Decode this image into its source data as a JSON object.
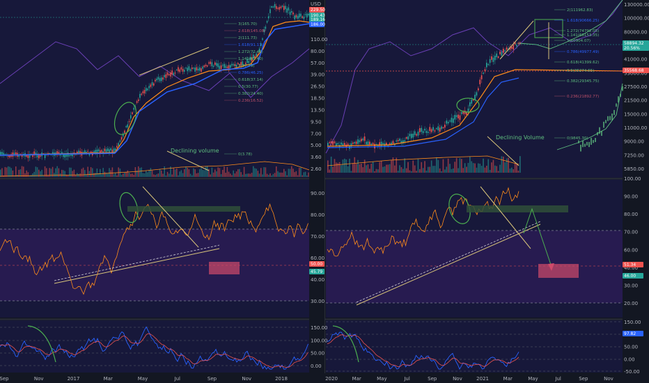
{
  "theme": {
    "bg": "#131722",
    "panel_bg": "#1b1b3c",
    "rsi_band": "#2b1a4e",
    "grid": "#2a2e39",
    "candle_up": "#26a69a",
    "candle_down": "#ef5350",
    "orange": "#ff8c1a",
    "blue": "#2962ff",
    "purple": "#6a3fb5",
    "annotation_green": "#2f4f3a",
    "annotation_red": "#d04a6a",
    "trend_yellow": "#d8c47a",
    "fib_green": "#5fbf7f",
    "fib_red": "#c0506a"
  },
  "left_chart": {
    "annotation": "Declining volume",
    "price_axis": {
      "unit": "USD",
      "ticks": [
        "110.00",
        "80.00",
        "57.00",
        "39.00",
        "26.50",
        "18.50",
        "13.50",
        "9.50",
        "7.00",
        "5.00",
        "3.60",
        "2.60"
      ],
      "badges": [
        {
          "text": "229.50",
          "color": "#ef5350"
        },
        {
          "text": "190.43",
          "color": "#26a69a"
        },
        {
          "text": "189.16",
          "color": "#26a69a"
        },
        {
          "text": "186.00",
          "color": "#2962ff"
        }
      ]
    },
    "fib_levels": [
      {
        "label": "3(165.70)",
        "color": "#5fbf7f"
      },
      {
        "label": "2.618(145.08)",
        "color": "#c0506a"
      },
      {
        "label": "2(111.73)",
        "color": "#5fbf7f"
      },
      {
        "label": "1.618(91.11)",
        "color": "#2962ff"
      },
      {
        "label": "1.272(72.46)",
        "color": "#5fbf7f"
      },
      {
        "label": "1.141(65.40)",
        "color": "#5fbf7f"
      },
      {
        "label": "1(57.79)",
        "color": "#5fbf7f"
      },
      {
        "label": "0.786(46.25)",
        "color": "#2962ff"
      },
      {
        "label": "0.618(37.14)",
        "color": "#5fbf7f"
      },
      {
        "label": "0.5(30.77)",
        "color": "#5fbf7f"
      },
      {
        "label": "0.382(24.40)",
        "color": "#5fbf7f"
      },
      {
        "label": "0.236(16.52)",
        "color": "#c0506a"
      },
      {
        "label": "0(3.78)",
        "color": "#5fbf7f"
      }
    ],
    "rsi_axis": [
      "90.00",
      "80.00",
      "70.00",
      "60.00",
      "40.00",
      "30.00"
    ],
    "rsi_badges": [
      {
        "text": "50.00",
        "color": "#ef5350"
      },
      {
        "text": "45.79",
        "color": "#26a69a"
      }
    ],
    "osc_axis": [
      "150.00",
      "100.00",
      "50.00",
      "0.00"
    ],
    "time_axis": [
      "Sep",
      "Nov",
      "2017",
      "Mar",
      "May",
      "Jul",
      "Sep",
      "Nov",
      "2018"
    ]
  },
  "right_chart": {
    "annotation": "Declining Volume",
    "price_axis": {
      "ticks": [
        "130000.00",
        "100000.00",
        "80000.00",
        "61000.00",
        "41000.00",
        "33000.00",
        "27500.00",
        "21500.00",
        "15000.00",
        "11000.00",
        "9000.00",
        "7250.00",
        "5850.00"
      ],
      "badges": [
        {
          "text": "58894.32",
          "color": "#26a69a"
        },
        {
          "text": "20.56%",
          "color": "#26a69a"
        },
        {
          "text": "35568.68",
          "color": "#ef5350"
        }
      ]
    },
    "fib_levels": [
      {
        "label": "2(111962.83)",
        "color": "#5fbf7f"
      },
      {
        "label": "1.618(90666.25)",
        "color": "#2962ff"
      },
      {
        "label": "1.272(74792.05)",
        "color": "#5fbf7f"
      },
      {
        "label": "1.141(68153.35)",
        "color": "#5fbf7f"
      },
      {
        "label": "1(60904.07)",
        "color": "#5fbf7f"
      },
      {
        "label": "0.786(49977.49)",
        "color": "#2962ff"
      },
      {
        "label": "0.618(41399.62)",
        "color": "#5fbf7f"
      },
      {
        "label": "0.5(35274.65)",
        "color": "#5fbf7f"
      },
      {
        "label": "0.382(29345.75)",
        "color": "#5fbf7f"
      },
      {
        "label": "0.236(21892.77)",
        "color": "#c0506a"
      },
      {
        "label": "0(9845.30)",
        "color": "#5fbf7f"
      }
    ],
    "rsi_axis": [
      "100.00",
      "90.00",
      "80.00",
      "70.00",
      "60.00",
      "40.00",
      "30.00",
      "20.00"
    ],
    "rsi_badges": [
      {
        "text": "51.34",
        "color": "#ef5350"
      },
      {
        "text": "46.00",
        "color": "#26a69a"
      }
    ],
    "osc_axis": [
      "150.00",
      "100.00",
      "50.00",
      "0.00",
      "-50.00"
    ],
    "osc_badges": [
      {
        "text": "97.82",
        "color": "#2962ff"
      }
    ],
    "time_axis": [
      "2020",
      "Mar",
      "May",
      "Jul",
      "Sep",
      "Nov",
      "2021",
      "Mar",
      "May",
      "Jul",
      "Sep",
      "Nov"
    ]
  }
}
